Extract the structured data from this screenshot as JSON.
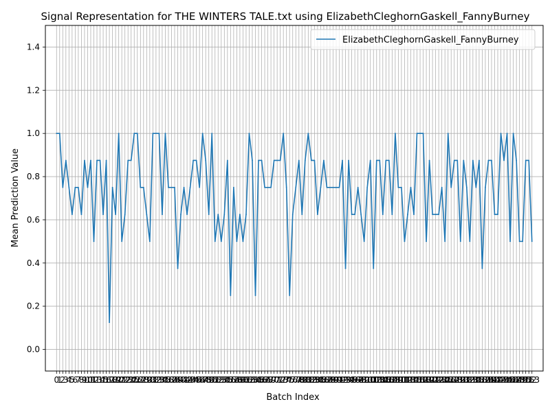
{
  "chart_data": {
    "type": "line",
    "title": "Signal Representation for THE WINTERS TALE.txt using ElizabethCleghornGaskell_FannyBurney",
    "xlabel": "Batch Index",
    "ylabel": "Mean Prediction Value",
    "ylim": [
      -0.1,
      1.5
    ],
    "xlim": [
      -3.6,
      156.6
    ],
    "grid": true,
    "legend_position": "top-right",
    "y_ticks": [
      0.0,
      0.2,
      0.4,
      0.6,
      0.8,
      1.0,
      1.2,
      1.4
    ],
    "y_tick_labels": [
      "0.0",
      "0.2",
      "0.4",
      "0.6",
      "0.8",
      "1.0",
      "1.2",
      "1.4"
    ],
    "colors": {
      "series": "#1f77b4",
      "grid": "#b0b0b0",
      "axes": "#000000"
    },
    "series": [
      {
        "name": "ElizabethCleghornGaskell_FannyBurney",
        "x": [
          0,
          1,
          2,
          3,
          4,
          5,
          6,
          7,
          8,
          9,
          10,
          11,
          12,
          13,
          14,
          15,
          16,
          17,
          18,
          19,
          20,
          21,
          22,
          23,
          24,
          25,
          26,
          27,
          28,
          29,
          30,
          31,
          32,
          33,
          34,
          35,
          36,
          37,
          38,
          39,
          40,
          41,
          42,
          43,
          44,
          45,
          46,
          47,
          48,
          49,
          50,
          51,
          52,
          53,
          54,
          55,
          56,
          57,
          58,
          59,
          60,
          61,
          62,
          63,
          64,
          65,
          66,
          67,
          68,
          69,
          70,
          71,
          72,
          73,
          74,
          75,
          76,
          77,
          78,
          79,
          80,
          81,
          82,
          83,
          84,
          85,
          86,
          87,
          88,
          89,
          90,
          91,
          92,
          93,
          94,
          95,
          96,
          97,
          98,
          99,
          100,
          101,
          102,
          103,
          104,
          105,
          106,
          107,
          108,
          109,
          110,
          111,
          112,
          113,
          114,
          115,
          116,
          117,
          118,
          119,
          120,
          121,
          122,
          123,
          124,
          125,
          126,
          127,
          128,
          129,
          130,
          131,
          132,
          133,
          134,
          135,
          136,
          137,
          138,
          139,
          140,
          141,
          142,
          143,
          144,
          145,
          146,
          147,
          148,
          149,
          150,
          151,
          152,
          153
        ],
        "values": [
          1.0,
          1.0,
          0.75,
          0.875,
          0.75,
          0.625,
          0.75,
          0.75,
          0.625,
          0.875,
          0.75,
          0.875,
          0.5,
          0.875,
          0.875,
          0.625,
          0.875,
          0.125,
          0.75,
          0.625,
          1.0,
          0.5,
          0.625,
          0.875,
          0.875,
          1.0,
          1.0,
          0.75,
          0.75,
          0.625,
          0.5,
          1.0,
          1.0,
          1.0,
          0.625,
          1.0,
          0.75,
          0.75,
          0.75,
          0.375,
          0.625,
          0.75,
          0.625,
          0.75,
          0.875,
          0.875,
          0.75,
          1.0,
          0.875,
          0.625,
          1.0,
          0.5,
          0.625,
          0.5,
          0.625,
          0.875,
          0.25,
          0.75,
          0.5,
          0.625,
          0.5,
          0.625,
          1.0,
          0.875,
          0.25,
          0.875,
          0.875,
          0.75,
          0.75,
          0.75,
          0.875,
          0.875,
          0.875,
          1.0,
          0.75,
          0.25,
          0.625,
          0.75,
          0.875,
          0.625,
          0.875,
          1.0,
          0.875,
          0.875,
          0.625,
          0.75,
          0.875,
          0.75,
          0.75,
          0.75,
          0.75,
          0.75,
          0.875,
          0.375,
          0.875,
          0.625,
          0.625,
          0.75,
          0.625,
          0.5,
          0.75,
          0.875,
          0.375,
          0.875,
          0.875,
          0.625,
          0.875,
          0.875,
          0.625,
          1.0,
          0.75,
          0.75,
          0.5,
          0.625,
          0.75,
          0.625,
          1.0,
          1.0,
          1.0,
          0.5,
          0.875,
          0.625,
          0.625,
          0.625,
          0.75,
          0.5,
          1.0,
          0.75,
          0.875,
          0.875,
          0.5,
          0.875,
          0.75,
          0.5,
          0.875,
          0.75,
          0.875,
          0.375,
          0.75,
          0.875,
          0.875,
          0.625,
          0.625,
          1.0,
          0.875,
          1.0,
          0.5,
          1.0,
          0.875,
          0.5,
          0.5,
          0.875,
          0.875,
          0.5
        ]
      }
    ]
  }
}
